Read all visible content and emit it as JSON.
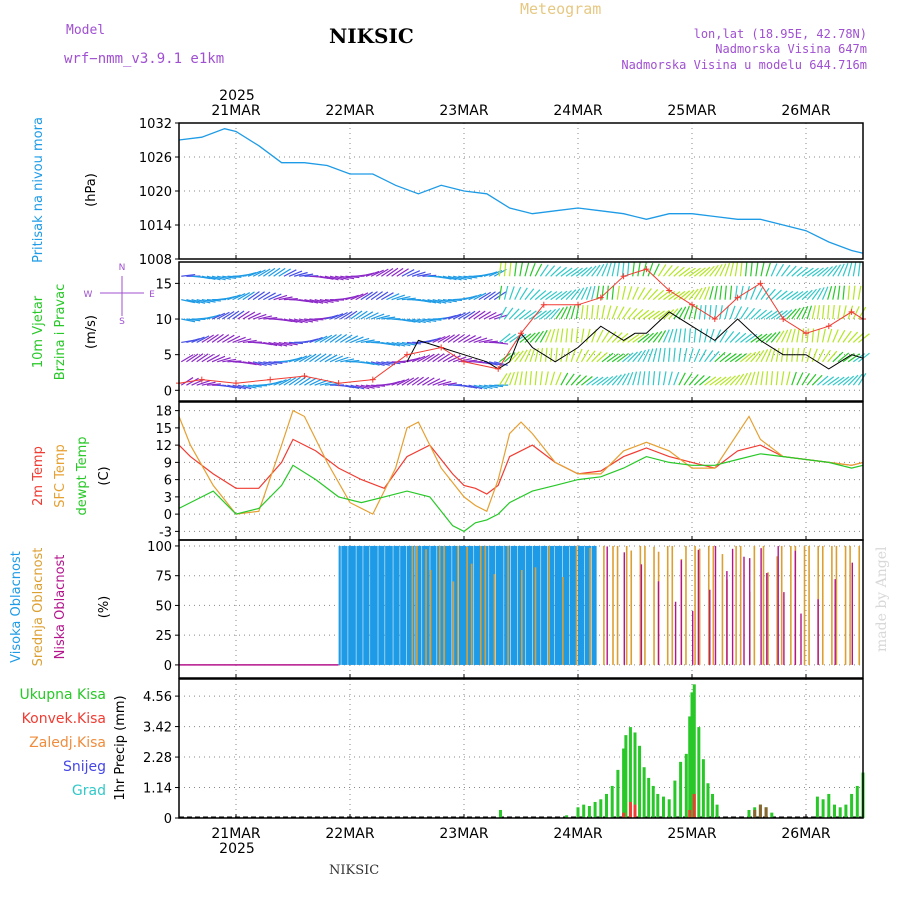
{
  "header": {
    "model_label": "Model",
    "model_name": "wrf−nmm_v3.9.1  e1km",
    "station": "NIKSIC",
    "title": "Meteogram",
    "coords": "lon,lat (18.95E, 42.78N)",
    "elevation": "Nadmorska Visina 647m",
    "model_elevation": "Nadmorska Visina u modelu 644.716m",
    "footer_station": "NIKSIC",
    "watermark": "made by Angel"
  },
  "time_axis": {
    "year": "2025",
    "start_day": 20.5,
    "end_day": 26.5,
    "ticks": [
      {
        "day": 21,
        "label": "21MAR"
      },
      {
        "day": 22,
        "label": "22MAR"
      },
      {
        "day": 23,
        "label": "23MAR"
      },
      {
        "day": 24,
        "label": "24MAR"
      },
      {
        "day": 25,
        "label": "25MAR"
      },
      {
        "day": 26,
        "label": "26MAR"
      }
    ]
  },
  "colors": {
    "pressure": "#1e9be6",
    "temp2m": "#f03c32",
    "sfc_temp": "#e6a032",
    "dewpoint": "#28c828",
    "cloud_high": "#1e9be6",
    "cloud_mid": "#dca032",
    "cloud_low": "#b4148c",
    "precip_total": "#28c828",
    "precip_conv": "#f03c32",
    "precip_frozen": "#f08c3c",
    "snow": "#4646e6",
    "hail": "#32c8c8",
    "wind_speed": "#000000",
    "wind_gust": "#f03c32",
    "model_label": "#a050d2",
    "title_meteogram": "#e6c882",
    "coords": "#a050d2"
  },
  "panels": {
    "pressure": {
      "ylabel1": "Pritisak na nivou mora",
      "unit": "(hPa)",
      "yticks": [
        "1032",
        "1026",
        "1020",
        "1014",
        "1008"
      ]
    },
    "wind": {
      "ylabel1": "10m Vjetar",
      "ylabel2": "Brzina i Pravac",
      "unit": "(m/s)",
      "yticks": [
        "15",
        "10",
        "5",
        "0"
      ],
      "compass": {
        "north": "N",
        "south": "S",
        "west": "W",
        "east": "E"
      }
    },
    "temperature": {
      "ylabel1": "2m Temp",
      "ylabel2": "SFC Temp",
      "ylabel3": "dewpt Temp",
      "unit": "(C)",
      "yticks": [
        "18",
        "15",
        "12",
        "9",
        "6",
        "3",
        "0",
        "-3"
      ]
    },
    "cloud": {
      "ylabel1": "Visoka Oblacnost",
      "ylabel2": "Srednja Oblacnost",
      "ylabel3": "Niska Oblacnost",
      "unit": "(%)",
      "yticks": [
        "100",
        "75",
        "50",
        "25",
        "0"
      ]
    },
    "precip": {
      "legend": [
        "Ukupna Kisa",
        "Konvek.Kisa",
        "Zaledj.Kisa",
        "Snijeg",
        "Grad"
      ],
      "ylabel": "1hr Precip (mm)",
      "yticks": [
        "4.56",
        "3.42",
        "2.28",
        "1.14",
        "0"
      ]
    }
  },
  "chart_data": [
    {
      "type": "line",
      "title": "",
      "ylabel": "Pritisak na nivou mora (hPa)",
      "ylim": [
        1008,
        1032
      ],
      "grid": true,
      "series": [
        {
          "name": "Pritisak na nivou mora",
          "x": [
            20.5,
            20.7,
            20.9,
            21.0,
            21.2,
            21.4,
            21.6,
            21.8,
            22.0,
            22.2,
            22.4,
            22.6,
            22.8,
            23.0,
            23.2,
            23.4,
            23.6,
            23.8,
            24.0,
            24.2,
            24.4,
            24.6,
            24.8,
            25.0,
            25.2,
            25.4,
            25.6,
            25.8,
            26.0,
            26.2,
            26.4,
            26.5
          ],
          "y": [
            1029,
            1029.5,
            1031,
            1030.5,
            1028,
            1025,
            1025,
            1024.5,
            1023,
            1023,
            1021,
            1019.5,
            1021,
            1020,
            1019.5,
            1017,
            1016,
            1016.5,
            1017,
            1016.5,
            1016,
            1015,
            1016,
            1016,
            1015.5,
            1015,
            1015,
            1014,
            1013,
            1011,
            1009.5,
            1009
          ]
        }
      ]
    },
    {
      "type": "line",
      "title": "",
      "ylabel": "10m Vjetar Brzina i Pravac (m/s)",
      "ylim": [
        -1.5,
        18
      ],
      "grid": true,
      "series": [
        {
          "name": "wind speed",
          "x": [
            22.5,
            22.6,
            22.8,
            23.0,
            23.2,
            23.3,
            23.4,
            23.5,
            23.6,
            23.8,
            24.0,
            24.2,
            24.4,
            24.5,
            24.6,
            24.8,
            25.0,
            25.2,
            25.4,
            25.6,
            25.8,
            26.0,
            26.2,
            26.4,
            26.5
          ],
          "y": [
            4,
            7,
            6,
            5,
            4,
            3,
            4,
            8,
            6,
            4,
            6,
            9,
            7,
            8,
            8,
            11,
            9,
            7,
            10,
            7,
            5,
            5,
            3,
            5,
            4.5
          ]
        },
        {
          "name": "wind gust",
          "x": [
            20.5,
            20.7,
            21.0,
            21.3,
            21.6,
            21.9,
            22.2,
            22.5,
            22.8,
            23.0,
            23.3,
            23.5,
            23.7,
            24.0,
            24.2,
            24.4,
            24.6,
            24.8,
            25.0,
            25.2,
            25.4,
            25.6,
            25.8,
            26.0,
            26.2,
            26.4,
            26.5
          ],
          "y": [
            1,
            1.5,
            1,
            1.5,
            2,
            1,
            1.5,
            5,
            6,
            4,
            3,
            8,
            12,
            12,
            13,
            16,
            17,
            14,
            12,
            10,
            13,
            15,
            10,
            8,
            9,
            11,
            10
          ]
        }
      ]
    },
    {
      "type": "line",
      "title": "",
      "ylabel": "Temp (C)",
      "ylim": [
        -4.5,
        19.5
      ],
      "grid": true,
      "series": [
        {
          "name": "2m Temp",
          "x": [
            20.5,
            20.6,
            20.8,
            21.0,
            21.2,
            21.4,
            21.5,
            21.7,
            21.9,
            22.1,
            22.3,
            22.5,
            22.7,
            22.9,
            23.0,
            23.1,
            23.2,
            23.3,
            23.4,
            23.6,
            23.8,
            24.0,
            24.2,
            24.4,
            24.6,
            24.8,
            25.0,
            25.2,
            25.4,
            25.6,
            25.8,
            26.0,
            26.2,
            26.4,
            26.5
          ],
          "y": [
            12,
            10,
            7,
            4.5,
            4.5,
            9,
            13,
            11,
            8,
            6,
            4.5,
            10,
            12,
            7,
            5,
            4.5,
            3.5,
            5,
            10,
            12,
            9,
            7,
            7.5,
            10,
            11.5,
            10,
            9,
            8,
            11,
            12,
            10,
            9.5,
            9,
            8.5,
            9
          ]
        },
        {
          "name": "SFC Temp",
          "x": [
            20.5,
            20.6,
            20.8,
            21.0,
            21.2,
            21.4,
            21.5,
            21.6,
            21.8,
            22.0,
            22.2,
            22.4,
            22.5,
            22.6,
            22.8,
            23.0,
            23.1,
            23.2,
            23.3,
            23.4,
            23.5,
            23.6,
            23.8,
            24.0,
            24.2,
            24.4,
            24.6,
            24.8,
            25.0,
            25.2,
            25.4,
            25.5,
            25.6,
            25.8,
            26.0,
            26.2,
            26.4,
            26.5
          ],
          "y": [
            17,
            12,
            5,
            0,
            0.5,
            12,
            18,
            17,
            9,
            2,
            0,
            8,
            15,
            16,
            8,
            3,
            1.5,
            0.5,
            6,
            14,
            16,
            14,
            9,
            7,
            7,
            11,
            12.5,
            11,
            8,
            8,
            14,
            17,
            13,
            10,
            9.5,
            9,
            8.5,
            9
          ]
        },
        {
          "name": "dewpt Temp",
          "x": [
            20.5,
            20.6,
            20.8,
            21.0,
            21.2,
            21.4,
            21.5,
            21.7,
            21.9,
            22.1,
            22.3,
            22.5,
            22.7,
            22.9,
            23.0,
            23.1,
            23.2,
            23.3,
            23.4,
            23.6,
            23.8,
            24.0,
            24.2,
            24.4,
            24.6,
            24.8,
            25.0,
            25.2,
            25.4,
            25.6,
            25.8,
            26.0,
            26.2,
            26.4,
            26.5
          ],
          "y": [
            1,
            2,
            4,
            0,
            1,
            5,
            8.5,
            6,
            3,
            2,
            3,
            4,
            3,
            -2,
            -3,
            -1.5,
            -1,
            0,
            2,
            4,
            5,
            6,
            6.5,
            8,
            10,
            9,
            8.5,
            8.5,
            9.5,
            10.5,
            10,
            9.5,
            9,
            8,
            8.5
          ]
        }
      ]
    },
    {
      "type": "bar",
      "title": "",
      "ylabel": "Oblacnost (%)",
      "ylim": [
        0,
        100
      ],
      "grid": true,
      "series": [
        {
          "name": "Visoka Oblacnost",
          "x_range": [
            21.9,
            24.15
          ],
          "value_pct": 100
        },
        {
          "name": "Srednja Oblacnost",
          "x_range": [
            22.5,
            26.5
          ],
          "value_pct": 100
        },
        {
          "name": "Niska Oblacnost",
          "x_range": [
            24.2,
            26.5
          ],
          "value_pct": 100
        }
      ]
    },
    {
      "type": "bar",
      "title": "",
      "ylabel": "1hr Precip (mm)",
      "ylim": [
        0,
        5.2
      ],
      "grid": true,
      "series": [
        {
          "name": "Ukupna Kisa",
          "x": [
            23.32,
            23.9,
            24.0,
            24.05,
            24.1,
            24.15,
            24.2,
            24.25,
            24.3,
            24.35,
            24.4,
            24.42,
            24.46,
            24.5,
            24.54,
            24.58,
            24.62,
            24.66,
            24.7,
            24.75,
            24.8,
            24.85,
            24.9,
            24.95,
            24.98,
            25.0,
            25.02,
            25.06,
            25.1,
            25.14,
            25.18,
            25.22,
            25.5,
            25.55,
            25.6,
            25.65,
            25.7,
            26.1,
            26.15,
            26.2,
            26.25,
            26.3,
            26.35,
            26.4,
            26.45,
            26.5
          ],
          "y": [
            0.3,
            0.1,
            0.4,
            0.5,
            0.45,
            0.6,
            0.7,
            0.9,
            1.2,
            1.8,
            2.6,
            3.1,
            3.4,
            3.2,
            2.7,
            1.9,
            1.5,
            1.2,
            0.9,
            0.8,
            0.7,
            1.4,
            2.1,
            2.4,
            3.8,
            4.7,
            5.0,
            3.4,
            2.2,
            1.3,
            0.9,
            0.5,
            0.3,
            0.4,
            0.5,
            0.4,
            0.2,
            0.8,
            0.7,
            0.9,
            0.5,
            0.4,
            0.5,
            0.9,
            1.2,
            1.7
          ]
        },
        {
          "name": "Konvek.Kisa",
          "x": [
            24.4,
            24.46,
            24.5,
            24.98,
            25.02
          ],
          "y": [
            0.2,
            0.6,
            0.5,
            0.3,
            0.9
          ]
        },
        {
          "name": "Zaledj.Kisa",
          "x": [
            25.55,
            25.6,
            25.65
          ],
          "y": [
            0.3,
            0.5,
            0.4
          ]
        }
      ]
    }
  ]
}
